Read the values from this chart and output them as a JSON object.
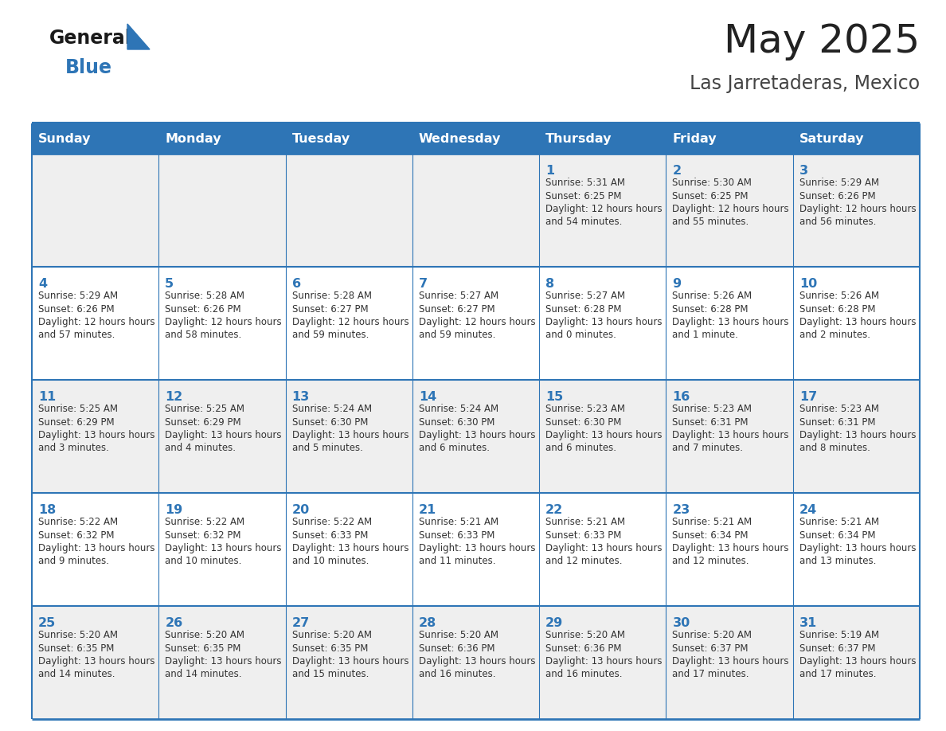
{
  "title": "May 2025",
  "subtitle": "Las Jarretaderas, Mexico",
  "days_of_week": [
    "Sunday",
    "Monday",
    "Tuesday",
    "Wednesday",
    "Thursday",
    "Friday",
    "Saturday"
  ],
  "header_bg": "#2E75B6",
  "header_text": "#FFFFFF",
  "odd_row_bg": "#EFEFEF",
  "even_row_bg": "#FFFFFF",
  "border_color": "#2E75B6",
  "day_number_color": "#2E75B6",
  "cell_text_color": "#333333",
  "title_color": "#222222",
  "subtitle_color": "#444444",
  "logo_general_color": "#1a1a1a",
  "logo_blue_color": "#2E75B6",
  "calendar": [
    [
      {
        "day": 0,
        "sunrise": "",
        "sunset": "",
        "daylight": ""
      },
      {
        "day": 0,
        "sunrise": "",
        "sunset": "",
        "daylight": ""
      },
      {
        "day": 0,
        "sunrise": "",
        "sunset": "",
        "daylight": ""
      },
      {
        "day": 0,
        "sunrise": "",
        "sunset": "",
        "daylight": ""
      },
      {
        "day": 1,
        "sunrise": "5:31 AM",
        "sunset": "6:25 PM",
        "daylight": "12 hours and 54 minutes."
      },
      {
        "day": 2,
        "sunrise": "5:30 AM",
        "sunset": "6:25 PM",
        "daylight": "12 hours and 55 minutes."
      },
      {
        "day": 3,
        "sunrise": "5:29 AM",
        "sunset": "6:26 PM",
        "daylight": "12 hours and 56 minutes."
      }
    ],
    [
      {
        "day": 4,
        "sunrise": "5:29 AM",
        "sunset": "6:26 PM",
        "daylight": "12 hours and 57 minutes."
      },
      {
        "day": 5,
        "sunrise": "5:28 AM",
        "sunset": "6:26 PM",
        "daylight": "12 hours and 58 minutes."
      },
      {
        "day": 6,
        "sunrise": "5:28 AM",
        "sunset": "6:27 PM",
        "daylight": "12 hours and 59 minutes."
      },
      {
        "day": 7,
        "sunrise": "5:27 AM",
        "sunset": "6:27 PM",
        "daylight": "12 hours and 59 minutes."
      },
      {
        "day": 8,
        "sunrise": "5:27 AM",
        "sunset": "6:28 PM",
        "daylight": "13 hours and 0 minutes."
      },
      {
        "day": 9,
        "sunrise": "5:26 AM",
        "sunset": "6:28 PM",
        "daylight": "13 hours and 1 minute."
      },
      {
        "day": 10,
        "sunrise": "5:26 AM",
        "sunset": "6:28 PM",
        "daylight": "13 hours and 2 minutes."
      }
    ],
    [
      {
        "day": 11,
        "sunrise": "5:25 AM",
        "sunset": "6:29 PM",
        "daylight": "13 hours and 3 minutes."
      },
      {
        "day": 12,
        "sunrise": "5:25 AM",
        "sunset": "6:29 PM",
        "daylight": "13 hours and 4 minutes."
      },
      {
        "day": 13,
        "sunrise": "5:24 AM",
        "sunset": "6:30 PM",
        "daylight": "13 hours and 5 minutes."
      },
      {
        "day": 14,
        "sunrise": "5:24 AM",
        "sunset": "6:30 PM",
        "daylight": "13 hours and 6 minutes."
      },
      {
        "day": 15,
        "sunrise": "5:23 AM",
        "sunset": "6:30 PM",
        "daylight": "13 hours and 6 minutes."
      },
      {
        "day": 16,
        "sunrise": "5:23 AM",
        "sunset": "6:31 PM",
        "daylight": "13 hours and 7 minutes."
      },
      {
        "day": 17,
        "sunrise": "5:23 AM",
        "sunset": "6:31 PM",
        "daylight": "13 hours and 8 minutes."
      }
    ],
    [
      {
        "day": 18,
        "sunrise": "5:22 AM",
        "sunset": "6:32 PM",
        "daylight": "13 hours and 9 minutes."
      },
      {
        "day": 19,
        "sunrise": "5:22 AM",
        "sunset": "6:32 PM",
        "daylight": "13 hours and 10 minutes."
      },
      {
        "day": 20,
        "sunrise": "5:22 AM",
        "sunset": "6:33 PM",
        "daylight": "13 hours and 10 minutes."
      },
      {
        "day": 21,
        "sunrise": "5:21 AM",
        "sunset": "6:33 PM",
        "daylight": "13 hours and 11 minutes."
      },
      {
        "day": 22,
        "sunrise": "5:21 AM",
        "sunset": "6:33 PM",
        "daylight": "13 hours and 12 minutes."
      },
      {
        "day": 23,
        "sunrise": "5:21 AM",
        "sunset": "6:34 PM",
        "daylight": "13 hours and 12 minutes."
      },
      {
        "day": 24,
        "sunrise": "5:21 AM",
        "sunset": "6:34 PM",
        "daylight": "13 hours and 13 minutes."
      }
    ],
    [
      {
        "day": 25,
        "sunrise": "5:20 AM",
        "sunset": "6:35 PM",
        "daylight": "13 hours and 14 minutes."
      },
      {
        "day": 26,
        "sunrise": "5:20 AM",
        "sunset": "6:35 PM",
        "daylight": "13 hours and 14 minutes."
      },
      {
        "day": 27,
        "sunrise": "5:20 AM",
        "sunset": "6:35 PM",
        "daylight": "13 hours and 15 minutes."
      },
      {
        "day": 28,
        "sunrise": "5:20 AM",
        "sunset": "6:36 PM",
        "daylight": "13 hours and 16 minutes."
      },
      {
        "day": 29,
        "sunrise": "5:20 AM",
        "sunset": "6:36 PM",
        "daylight": "13 hours and 16 minutes."
      },
      {
        "day": 30,
        "sunrise": "5:20 AM",
        "sunset": "6:37 PM",
        "daylight": "13 hours and 17 minutes."
      },
      {
        "day": 31,
        "sunrise": "5:19 AM",
        "sunset": "6:37 PM",
        "daylight": "13 hours and 17 minutes."
      }
    ]
  ]
}
